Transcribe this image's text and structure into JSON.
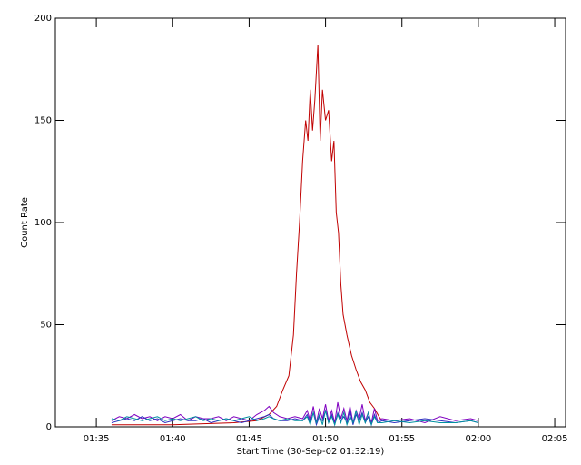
{
  "chart_data": {
    "type": "line",
    "xlabel": "Start Time (30-Sep-02 01:32:19)",
    "ylabel": "Count Rate",
    "xlim": [
      92.32,
      125.71
    ],
    "ylim": [
      0,
      200
    ],
    "xticks": [
      {
        "value": 95,
        "label": "01:35"
      },
      {
        "value": 100,
        "label": "01:40"
      },
      {
        "value": 105,
        "label": "01:45"
      },
      {
        "value": 110,
        "label": "01:50"
      },
      {
        "value": 115,
        "label": "01:55"
      },
      {
        "value": 120,
        "label": "02:00"
      },
      {
        "value": 125,
        "label": "02:05"
      }
    ],
    "yticks": [
      0,
      50,
      100,
      150,
      200
    ],
    "series": [
      {
        "color": "#c00000",
        "x": [
          96,
          98,
          100,
          102,
          104,
          105.5,
          106.3,
          106.8,
          107.2,
          107.6,
          107.9,
          108.1,
          108.3,
          108.5,
          108.7,
          108.85,
          109.0,
          109.15,
          109.3,
          109.5,
          109.65,
          109.8,
          110.0,
          110.2,
          110.4,
          110.55,
          110.7,
          110.85,
          111.0,
          111.15,
          111.4,
          111.7,
          112.0,
          112.3,
          112.6,
          112.9,
          113.2,
          113.5,
          113.7
        ],
        "values": [
          1,
          1,
          1,
          1.5,
          2,
          3,
          6,
          10,
          18,
          25,
          45,
          75,
          100,
          130,
          150,
          140,
          165,
          145,
          160,
          187,
          140,
          165,
          150,
          155,
          130,
          140,
          105,
          95,
          70,
          55,
          45,
          35,
          28,
          22,
          18,
          12,
          9,
          5,
          3
        ]
      },
      {
        "color": "#8000c0",
        "x": [
          96,
          96.5,
          97,
          97.5,
          98,
          98.5,
          99,
          99.5,
          100,
          100.5,
          101,
          101.5,
          102,
          102.5,
          103,
          103.5,
          104,
          104.5,
          105,
          105.5,
          106,
          106.3,
          106.6,
          107,
          107.5,
          108,
          108.5,
          108.8,
          109,
          109.2,
          109.4,
          109.6,
          109.8,
          110,
          110.2,
          110.4,
          110.6,
          110.8,
          111,
          111.2,
          111.4,
          111.6,
          111.8,
          112,
          112.2,
          112.4,
          112.6,
          112.8,
          113,
          113.2,
          113.4,
          113.7,
          114.5,
          115.5,
          116.5,
          117.5,
          118.5,
          119.5,
          120
        ],
        "values": [
          3,
          5,
          4,
          6,
          4,
          5,
          3,
          5,
          4,
          6,
          3,
          5,
          4,
          4,
          5,
          3,
          5,
          4,
          3,
          6,
          8,
          10,
          7,
          5,
          4,
          5,
          4,
          8,
          3,
          10,
          2,
          9,
          4,
          11,
          3,
          8,
          2,
          12,
          4,
          9,
          3,
          10,
          2,
          8,
          4,
          11,
          3,
          7,
          2,
          9,
          3,
          4,
          3,
          4,
          2,
          5,
          3,
          4,
          3
        ]
      },
      {
        "color": "#3030c0",
        "x": [
          96,
          96.5,
          97,
          97.5,
          98,
          98.5,
          99,
          99.5,
          100,
          100.5,
          101,
          101.5,
          102,
          102.5,
          103,
          103.5,
          104,
          104.5,
          105,
          105.5,
          106,
          106.3,
          106.6,
          107,
          107.5,
          108,
          108.5,
          108.8,
          109,
          109.2,
          109.4,
          109.6,
          109.8,
          110,
          110.2,
          110.4,
          110.6,
          110.8,
          111,
          111.2,
          111.4,
          111.6,
          111.8,
          112,
          112.2,
          112.4,
          112.6,
          112.8,
          113,
          113.2,
          113.4,
          113.7,
          114.5,
          115.5,
          116.5,
          117.5,
          118.5,
          119.5,
          120
        ],
        "values": [
          2,
          3,
          4,
          3,
          5,
          3,
          4,
          2,
          3,
          4,
          3,
          3,
          4,
          2,
          3,
          4,
          3,
          2,
          3,
          4,
          5,
          6,
          4,
          3,
          3,
          4,
          3,
          6,
          2,
          7,
          1,
          5,
          3,
          8,
          2,
          6,
          1,
          7,
          3,
          5,
          2,
          8,
          1,
          6,
          3,
          7,
          2,
          5,
          1,
          6,
          2,
          3,
          2,
          3,
          4,
          3,
          2,
          3,
          2
        ]
      },
      {
        "color": "#0090a0",
        "x": [
          96,
          96.5,
          97,
          97.5,
          98,
          98.5,
          99,
          99.5,
          100,
          100.5,
          101,
          101.5,
          102,
          102.5,
          103,
          103.5,
          104,
          104.5,
          105,
          105.5,
          106,
          106.3,
          106.6,
          107,
          107.5,
          108,
          108.5,
          108.8,
          109,
          109.2,
          109.4,
          109.6,
          109.8,
          110,
          110.2,
          110.4,
          110.6,
          110.8,
          111,
          111.2,
          111.4,
          111.6,
          111.8,
          112,
          112.2,
          112.4,
          112.6,
          112.8,
          113,
          113.2,
          113.4,
          113.7,
          114.5,
          115.5,
          116.5,
          117.5,
          118.5,
          119.5,
          120
        ],
        "values": [
          4,
          3,
          5,
          4,
          3,
          4,
          5,
          3,
          4,
          3,
          4,
          5,
          3,
          4,
          3,
          4,
          3,
          4,
          5,
          3,
          4,
          5,
          4,
          3,
          4,
          3,
          3,
          5,
          1,
          7,
          2,
          6,
          1,
          8,
          2,
          5,
          1,
          6,
          2,
          7,
          1,
          5,
          2,
          8,
          1,
          6,
          2,
          7,
          1,
          5,
          2,
          2,
          3,
          2,
          3,
          2,
          2,
          3,
          2
        ]
      }
    ]
  }
}
